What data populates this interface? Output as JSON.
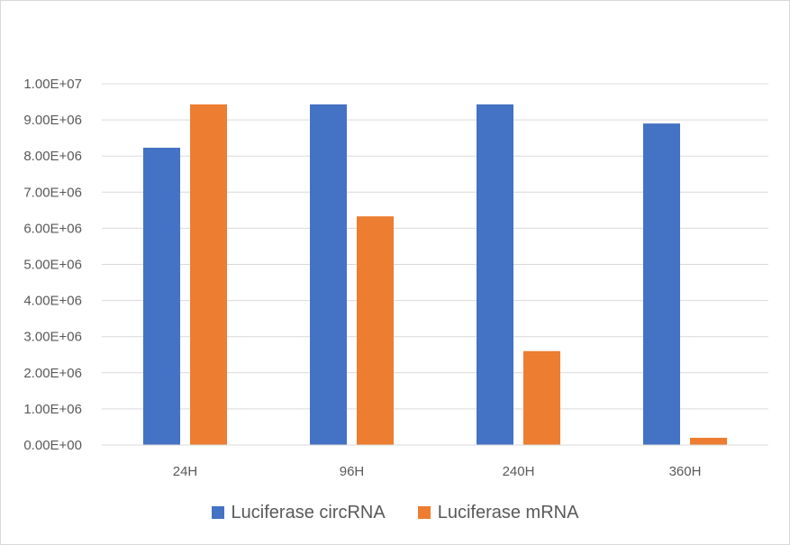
{
  "chart_data": {
    "type": "bar",
    "title": "",
    "xlabel": "",
    "ylabel": "",
    "categories": [
      "24H",
      "96H",
      "240H",
      "360H"
    ],
    "series": [
      {
        "name": "Luciferase circRNA",
        "color": "#4472C4",
        "values": [
          8230000,
          9430000,
          9430000,
          8900000
        ]
      },
      {
        "name": "Luciferase mRNA",
        "color": "#ED7D31",
        "values": [
          9430000,
          6330000,
          2600000,
          200000
        ]
      }
    ],
    "ylim": [
      0,
      10000000
    ],
    "ytick_labels": [
      "0.00E+00",
      "1.00E+06",
      "2.00E+06",
      "3.00E+06",
      "4.00E+06",
      "5.00E+06",
      "6.00E+06",
      "7.00E+06",
      "8.00E+06",
      "9.00E+06",
      "1.00E+07"
    ],
    "grid": true,
    "legend_position": "bottom"
  }
}
